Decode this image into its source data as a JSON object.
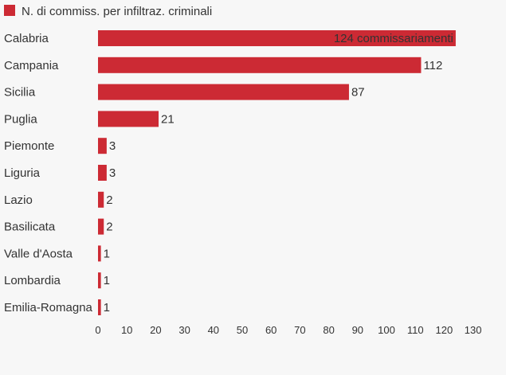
{
  "chart_data": {
    "type": "bar",
    "orientation": "horizontal",
    "legend": {
      "label": "N. di commiss. per infiltraz. criminali",
      "placement": "top-left"
    },
    "categories": [
      "Calabria",
      "Campania",
      "Sicilia",
      "Puglia",
      "Piemonte",
      "Liguria",
      "Lazio",
      "Basilicata",
      "Valle d'Aosta",
      "Lombardia",
      "Emilia-Romagna"
    ],
    "values": [
      124,
      112,
      87,
      21,
      3,
      3,
      2,
      2,
      1,
      1,
      1
    ],
    "first_value_label": "124 commissariamenti",
    "xticks": [
      0,
      10,
      20,
      30,
      40,
      50,
      60,
      70,
      80,
      90,
      100,
      110,
      120,
      130
    ],
    "xlim": [
      0,
      130
    ],
    "grid": false,
    "colors": {
      "bar": "#cc2a34",
      "text": "#333333",
      "background": "#f7f7f7"
    }
  }
}
